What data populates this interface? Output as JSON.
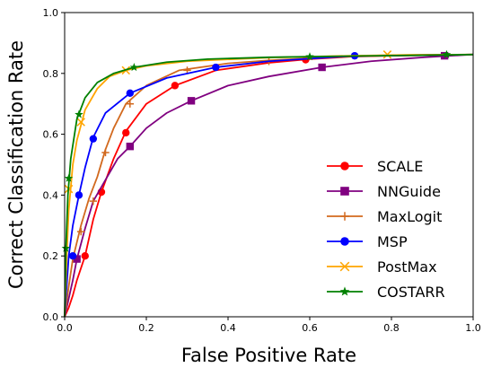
{
  "chart_data": {
    "type": "line",
    "xlabel": "False Positive Rate",
    "ylabel": "Correct Classification Rate",
    "xlim": [
      0.0,
      1.0
    ],
    "ylim": [
      0.0,
      1.0
    ],
    "x_ticks": [
      "0.0",
      "0.2",
      "0.4",
      "0.6",
      "0.8",
      "1.0"
    ],
    "y_ticks": [
      "0.0",
      "0.2",
      "0.4",
      "0.6",
      "0.8",
      "1.0"
    ],
    "grid": false,
    "legend_position": "lower right",
    "series": [
      {
        "name": "SCALE",
        "color": "#ff0000",
        "marker": "circle",
        "x": [
          0.0,
          0.01,
          0.02,
          0.03,
          0.05,
          0.07,
          0.09,
          0.12,
          0.15,
          0.2,
          0.27,
          0.37,
          0.5,
          0.6,
          0.7,
          0.8,
          0.9,
          1.0
        ],
        "y": [
          0.0,
          0.03,
          0.07,
          0.12,
          0.2,
          0.32,
          0.41,
          0.52,
          0.61,
          0.7,
          0.76,
          0.81,
          0.835,
          0.847,
          0.855,
          0.858,
          0.86,
          0.862
        ],
        "markers_at": [
          [
            0.05,
            0.2
          ],
          [
            0.09,
            0.41
          ],
          [
            0.15,
            0.605
          ],
          [
            0.27,
            0.76
          ],
          [
            0.59,
            0.845
          ]
        ]
      },
      {
        "name": "NNGuide",
        "color": "#800080",
        "marker": "square",
        "x": [
          0.0,
          0.01,
          0.02,
          0.03,
          0.05,
          0.07,
          0.1,
          0.13,
          0.16,
          0.2,
          0.25,
          0.31,
          0.4,
          0.5,
          0.63,
          0.75,
          0.88,
          1.0
        ],
        "y": [
          0.0,
          0.06,
          0.12,
          0.19,
          0.29,
          0.38,
          0.45,
          0.52,
          0.56,
          0.62,
          0.67,
          0.71,
          0.76,
          0.79,
          0.82,
          0.84,
          0.853,
          0.862
        ],
        "markers_at": [
          [
            0.03,
            0.19
          ],
          [
            0.16,
            0.56
          ],
          [
            0.31,
            0.71
          ],
          [
            0.63,
            0.82
          ],
          [
            0.93,
            0.858
          ]
        ]
      },
      {
        "name": "MaxLogit",
        "color": "#d2691e",
        "marker": "plus",
        "x": [
          0.0,
          0.01,
          0.02,
          0.04,
          0.06,
          0.08,
          0.1,
          0.12,
          0.15,
          0.2,
          0.28,
          0.4,
          0.5,
          0.6,
          0.7,
          0.8,
          1.0
        ],
        "y": [
          0.0,
          0.1,
          0.19,
          0.3,
          0.39,
          0.46,
          0.55,
          0.62,
          0.7,
          0.76,
          0.81,
          0.833,
          0.843,
          0.85,
          0.856,
          0.86,
          0.862
        ],
        "markers_at": [
          [
            0.04,
            0.28
          ],
          [
            0.07,
            0.38
          ],
          [
            0.1,
            0.54
          ],
          [
            0.16,
            0.7
          ],
          [
            0.3,
            0.81
          ],
          [
            0.5,
            0.84
          ]
        ]
      },
      {
        "name": "MSP",
        "color": "#0000ff",
        "marker": "circle",
        "x": [
          0.0,
          0.005,
          0.01,
          0.02,
          0.035,
          0.05,
          0.07,
          0.1,
          0.16,
          0.25,
          0.37,
          0.5,
          0.7,
          0.85,
          1.0
        ],
        "y": [
          0.0,
          0.1,
          0.2,
          0.3,
          0.4,
          0.49,
          0.59,
          0.67,
          0.735,
          0.785,
          0.82,
          0.84,
          0.857,
          0.86,
          0.862
        ],
        "markers_at": [
          [
            0.02,
            0.2
          ],
          [
            0.035,
            0.4
          ],
          [
            0.07,
            0.585
          ],
          [
            0.16,
            0.735
          ],
          [
            0.37,
            0.82
          ],
          [
            0.71,
            0.858
          ]
        ]
      },
      {
        "name": "PostMax",
        "color": "#ffa500",
        "marker": "x",
        "x": [
          0.0,
          0.005,
          0.01,
          0.02,
          0.03,
          0.05,
          0.08,
          0.11,
          0.15,
          0.2,
          0.3,
          0.5,
          0.7,
          0.85,
          1.0
        ],
        "y": [
          0.0,
          0.2,
          0.35,
          0.5,
          0.58,
          0.68,
          0.75,
          0.79,
          0.81,
          0.825,
          0.84,
          0.852,
          0.858,
          0.861,
          0.862
        ],
        "markers_at": [
          [
            0.01,
            0.42
          ],
          [
            0.04,
            0.64
          ],
          [
            0.15,
            0.81
          ],
          [
            0.79,
            0.862
          ]
        ]
      },
      {
        "name": "COSTARR",
        "color": "#008000",
        "marker": "star",
        "x": [
          0.0,
          0.003,
          0.008,
          0.015,
          0.03,
          0.05,
          0.08,
          0.12,
          0.17,
          0.25,
          0.35,
          0.5,
          0.7,
          0.9,
          1.0
        ],
        "y": [
          0.0,
          0.22,
          0.4,
          0.52,
          0.65,
          0.72,
          0.77,
          0.8,
          0.82,
          0.837,
          0.847,
          0.853,
          0.857,
          0.86,
          0.862
        ],
        "markers_at": [
          [
            0.003,
            0.225
          ],
          [
            0.01,
            0.455
          ],
          [
            0.035,
            0.665
          ],
          [
            0.17,
            0.82
          ],
          [
            0.6,
            0.855
          ],
          [
            0.935,
            0.862
          ]
        ]
      }
    ]
  }
}
